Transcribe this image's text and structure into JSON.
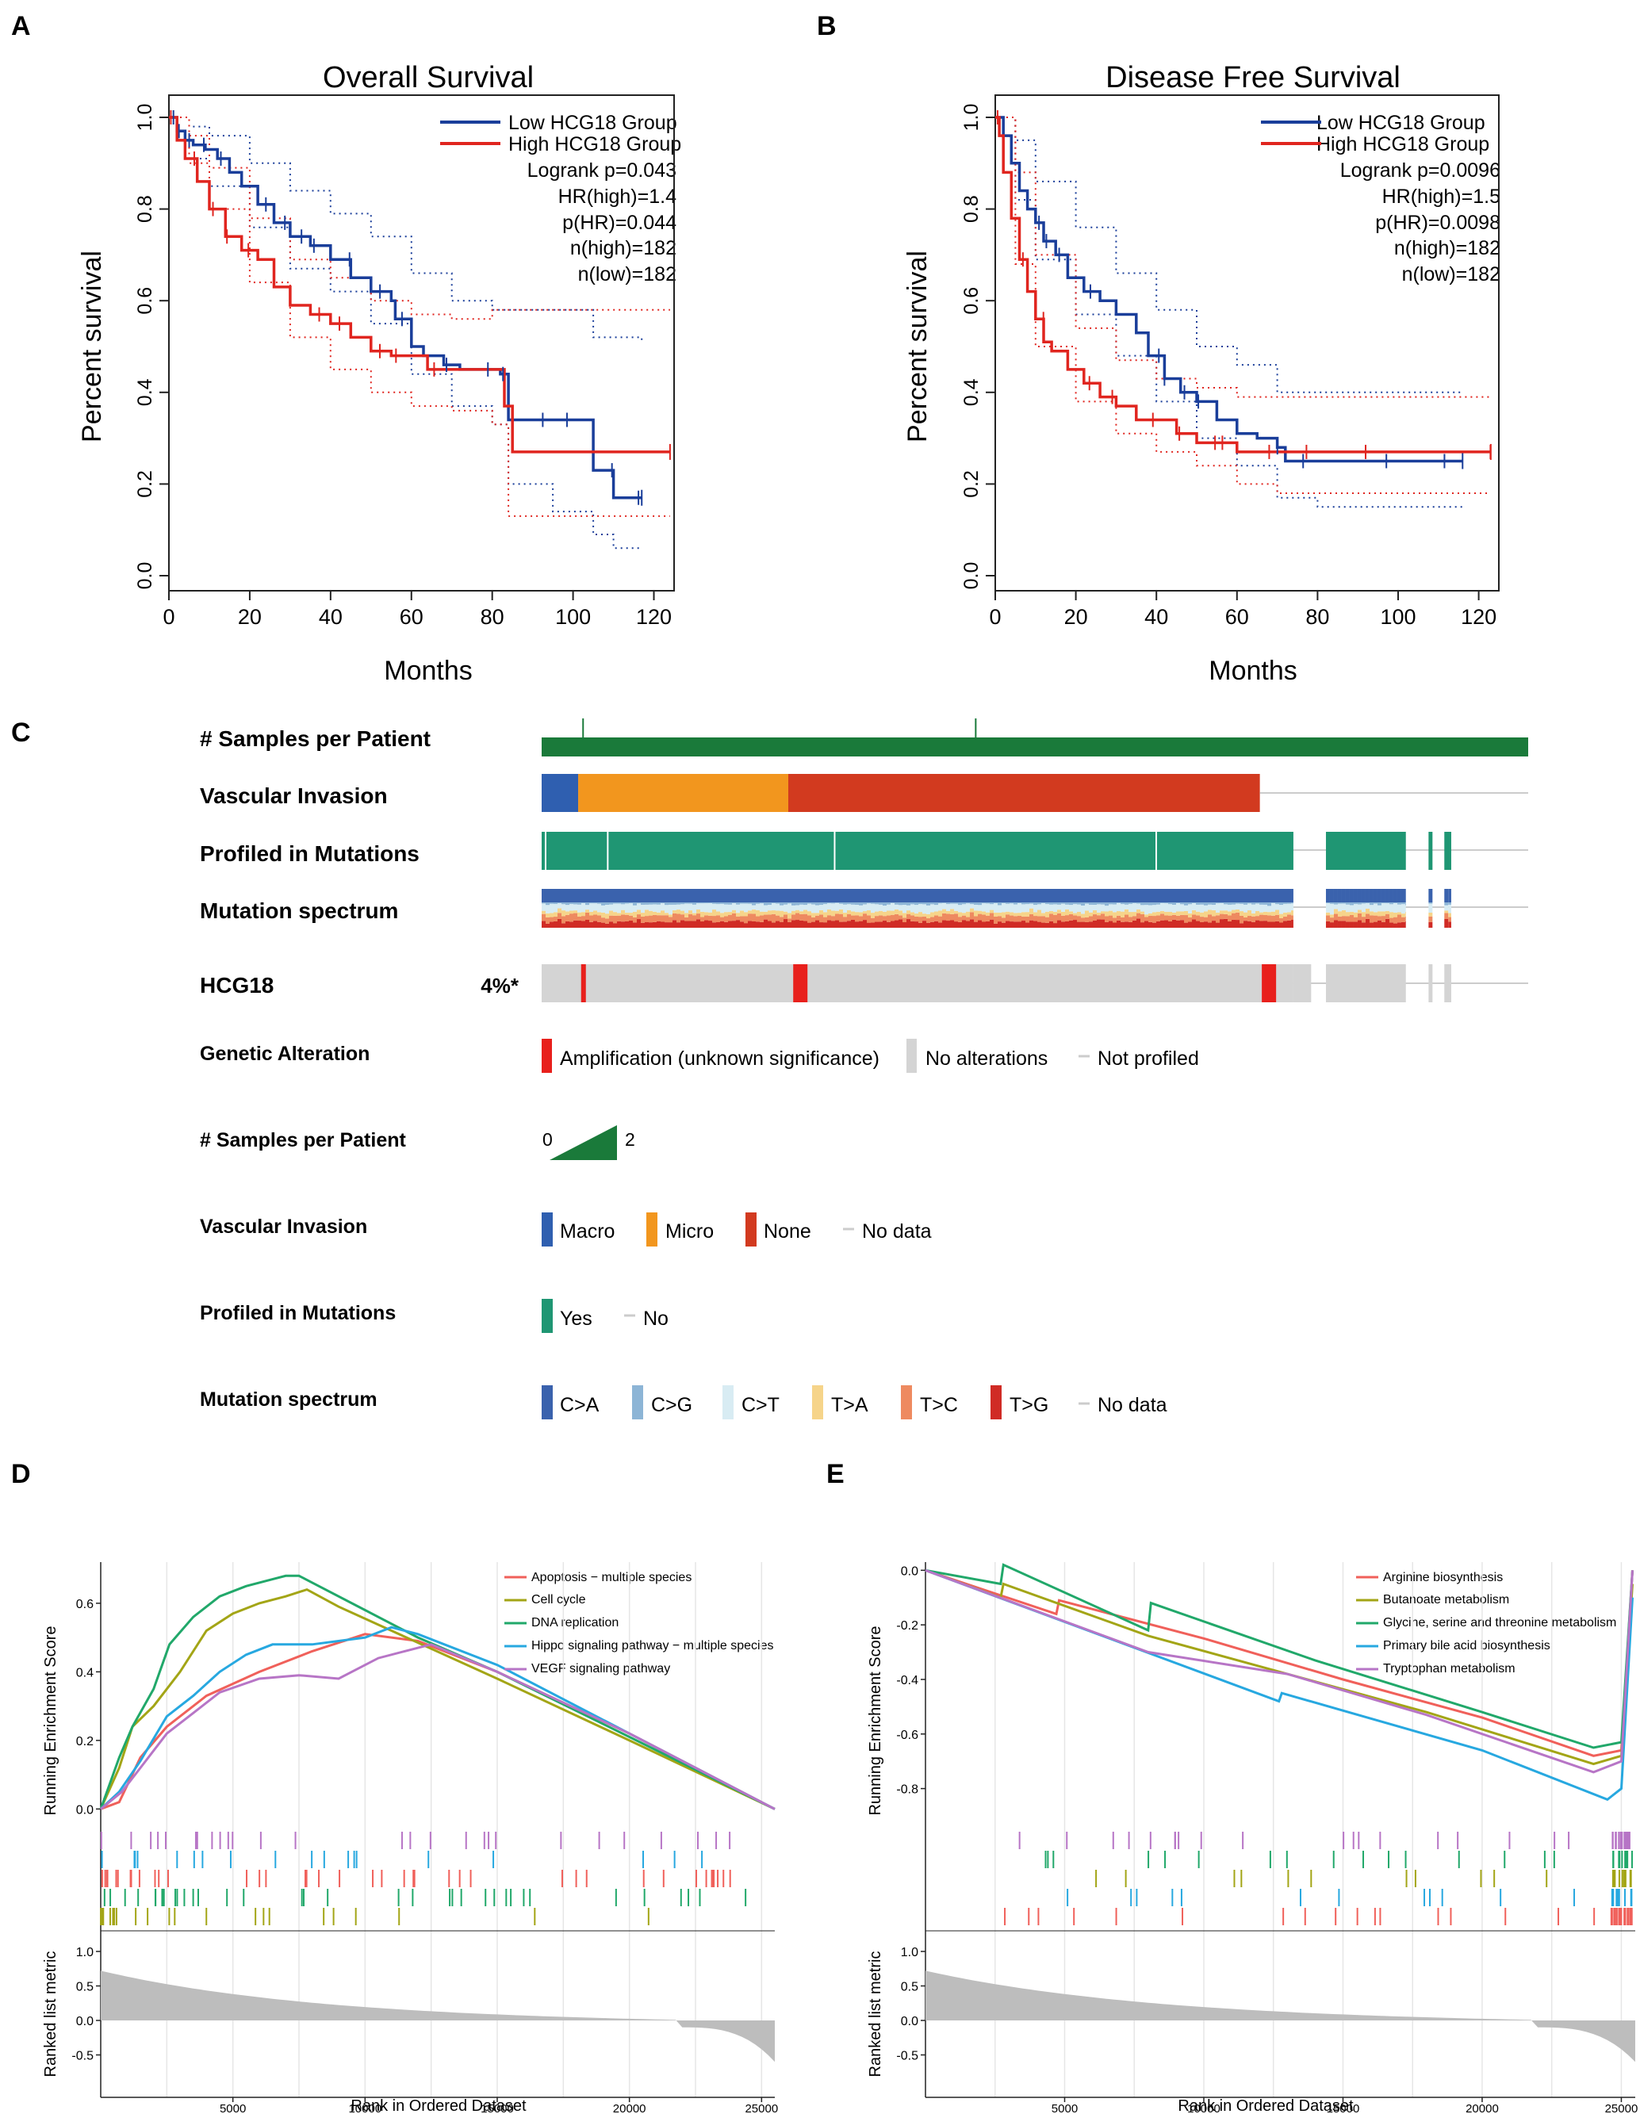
{
  "panel_labels": {
    "a": "A",
    "b": "B",
    "c": "C",
    "d": "D",
    "e": "E"
  },
  "colors": {
    "low": "#1a3e9a",
    "high": "#e0251f",
    "green_dark": "#1a7a3a",
    "teal": "#1f9673",
    "grey": "#d4d4d4",
    "amp": "#e8201c",
    "macro": "#2f5fb0",
    "micro": "#f2961e",
    "none": "#d23a1f",
    "ca": "#3a62ad",
    "cg": "#8db5d6",
    "ct": "#d8ecf3",
    "ta": "#f6d48a",
    "tc": "#ee8a60",
    "tg": "#d02b25",
    "gsea": [
      "#f0605a",
      "#a3a516",
      "#21a86a",
      "#27a8e0",
      "#b775c6"
    ]
  },
  "chart_data": [
    {
      "type": "line",
      "title": "Overall Survival",
      "xlabel": "Months",
      "ylabel": "Percent survival",
      "xlim": [
        0,
        125
      ],
      "ylim": [
        0,
        1.0
      ],
      "xticks": [
        "0",
        "20",
        "40",
        "60",
        "80",
        "100",
        "120"
      ],
      "yticks": [
        "0.0",
        "0.2",
        "0.4",
        "0.6",
        "0.8",
        "1.0"
      ],
      "legend": [
        "Low HCG18 Group",
        "High HCG18 Group"
      ],
      "stats": [
        "Logrank p=0.043",
        "HR(high)=1.4",
        "p(HR)=0.044",
        "n(high)=182",
        "n(low)=182"
      ],
      "series": [
        {
          "name": "Low HCG18 Group",
          "x": [
            0,
            2,
            4,
            6,
            9,
            12,
            15,
            18,
            22,
            26,
            30,
            35,
            40,
            45,
            50,
            55,
            56,
            60,
            63,
            68,
            72,
            78,
            82,
            84,
            95,
            105,
            110,
            117
          ],
          "y": [
            1.0,
            0.97,
            0.95,
            0.94,
            0.93,
            0.91,
            0.88,
            0.85,
            0.81,
            0.77,
            0.74,
            0.72,
            0.69,
            0.65,
            0.62,
            0.6,
            0.56,
            0.5,
            0.48,
            0.46,
            0.45,
            0.45,
            0.44,
            0.34,
            0.34,
            0.23,
            0.17,
            0.17
          ]
        },
        {
          "name": "High HCG18 Group",
          "x": [
            0,
            2,
            4,
            7,
            10,
            14,
            18,
            22,
            26,
            30,
            35,
            40,
            45,
            50,
            55,
            60,
            64,
            70,
            76,
            82,
            83,
            85,
            95,
            105,
            115,
            124
          ],
          "y": [
            1.0,
            0.95,
            0.91,
            0.86,
            0.8,
            0.74,
            0.71,
            0.69,
            0.63,
            0.59,
            0.57,
            0.55,
            0.52,
            0.49,
            0.48,
            0.48,
            0.45,
            0.45,
            0.45,
            0.45,
            0.37,
            0.27,
            0.27,
            0.27,
            0.27,
            0.27
          ]
        },
        {
          "name": "Low CI upper",
          "x": [
            0,
            5,
            10,
            20,
            30,
            40,
            50,
            60,
            70,
            80,
            84,
            95,
            105,
            117
          ],
          "y": [
            1.0,
            0.98,
            0.96,
            0.9,
            0.84,
            0.79,
            0.74,
            0.66,
            0.6,
            0.58,
            0.58,
            0.58,
            0.52,
            0.51
          ]
        },
        {
          "name": "Low CI lower",
          "x": [
            0,
            5,
            10,
            20,
            30,
            40,
            50,
            60,
            70,
            80,
            84,
            95,
            105,
            110,
            117
          ],
          "y": [
            1.0,
            0.91,
            0.85,
            0.76,
            0.67,
            0.62,
            0.55,
            0.44,
            0.37,
            0.33,
            0.2,
            0.14,
            0.09,
            0.06,
            0.06
          ]
        },
        {
          "name": "High CI upper",
          "x": [
            0,
            5,
            10,
            20,
            30,
            40,
            50,
            60,
            70,
            80,
            84,
            95,
            110,
            124
          ],
          "y": [
            1.0,
            0.96,
            0.89,
            0.78,
            0.69,
            0.65,
            0.6,
            0.57,
            0.56,
            0.58,
            0.58,
            0.58,
            0.58,
            0.58
          ]
        },
        {
          "name": "High CI lower",
          "x": [
            0,
            5,
            10,
            20,
            30,
            40,
            50,
            60,
            70,
            80,
            84,
            95,
            110,
            124
          ],
          "y": [
            1.0,
            0.9,
            0.8,
            0.64,
            0.52,
            0.45,
            0.4,
            0.37,
            0.36,
            0.33,
            0.13,
            0.13,
            0.13,
            0.13
          ]
        }
      ]
    },
    {
      "type": "line",
      "title": "Disease Free Survival",
      "xlabel": "Months",
      "ylabel": "Percent survival",
      "xlim": [
        0,
        125
      ],
      "ylim": [
        0,
        1.0
      ],
      "xticks": [
        "0",
        "20",
        "40",
        "60",
        "80",
        "100",
        "120"
      ],
      "yticks": [
        "0.0",
        "0.2",
        "0.4",
        "0.6",
        "0.8",
        "1.0"
      ],
      "legend": [
        "Low HCG18 Group",
        "High HCG18 Group"
      ],
      "stats": [
        "Logrank p=0.0096",
        "HR(high)=1.5",
        "p(HR)=0.0098",
        "n(high)=182",
        "n(low)=182"
      ],
      "series": [
        {
          "name": "Low HCG18 Group",
          "x": [
            0,
            2,
            4,
            6,
            8,
            10,
            12,
            15,
            18,
            22,
            26,
            30,
            35,
            38,
            42,
            46,
            50,
            55,
            60,
            65,
            70,
            72,
            80,
            90,
            100,
            110,
            116
          ],
          "y": [
            1.0,
            0.96,
            0.9,
            0.84,
            0.8,
            0.77,
            0.73,
            0.7,
            0.65,
            0.62,
            0.6,
            0.57,
            0.53,
            0.48,
            0.43,
            0.4,
            0.38,
            0.34,
            0.31,
            0.3,
            0.28,
            0.25,
            0.25,
            0.25,
            0.25,
            0.25,
            0.25
          ]
        },
        {
          "name": "High HCG18 Group",
          "x": [
            0,
            1,
            2,
            4,
            6,
            8,
            10,
            12,
            14,
            18,
            22,
            26,
            30,
            35,
            40,
            45,
            50,
            55,
            60,
            65,
            70,
            80,
            90,
            100,
            110,
            123
          ],
          "y": [
            1.0,
            0.96,
            0.88,
            0.78,
            0.69,
            0.62,
            0.56,
            0.51,
            0.49,
            0.45,
            0.42,
            0.39,
            0.37,
            0.34,
            0.34,
            0.31,
            0.29,
            0.29,
            0.27,
            0.27,
            0.27,
            0.27,
            0.27,
            0.27,
            0.27,
            0.27
          ]
        },
        {
          "name": "Low CI upper",
          "x": [
            0,
            5,
            10,
            20,
            30,
            40,
            50,
            60,
            70,
            80,
            90,
            100,
            116
          ],
          "y": [
            1.0,
            0.95,
            0.86,
            0.76,
            0.66,
            0.58,
            0.5,
            0.46,
            0.4,
            0.4,
            0.4,
            0.4,
            0.4
          ]
        },
        {
          "name": "Low CI lower",
          "x": [
            0,
            5,
            10,
            20,
            30,
            40,
            50,
            60,
            70,
            80,
            90,
            100,
            116
          ],
          "y": [
            1.0,
            0.82,
            0.69,
            0.57,
            0.48,
            0.38,
            0.3,
            0.24,
            0.17,
            0.15,
            0.15,
            0.15,
            0.15
          ]
        },
        {
          "name": "High CI upper",
          "x": [
            0,
            5,
            10,
            20,
            30,
            40,
            50,
            60,
            70,
            80,
            100,
            123
          ],
          "y": [
            1.0,
            0.88,
            0.7,
            0.54,
            0.47,
            0.43,
            0.41,
            0.39,
            0.39,
            0.39,
            0.39,
            0.39
          ]
        },
        {
          "name": "High CI lower",
          "x": [
            0,
            5,
            10,
            20,
            30,
            40,
            50,
            60,
            70,
            80,
            100,
            123
          ],
          "y": [
            1.0,
            0.68,
            0.5,
            0.38,
            0.31,
            0.27,
            0.24,
            0.2,
            0.18,
            0.18,
            0.18,
            0.18
          ]
        }
      ]
    },
    {
      "type": "line",
      "title": "",
      "xlabel": "Rank in Ordered Dataset",
      "ylabel": "Running Enrichment Score",
      "ylabel2": "Ranked list metric",
      "xlim": [
        0,
        25500
      ],
      "ylim": [
        -0.02,
        0.72
      ],
      "xticks": [
        "5000",
        "10000",
        "15000",
        "20000",
        "25000"
      ],
      "yticks": [
        "0.0",
        "0.2",
        "0.4",
        "0.6"
      ],
      "yticks2": [
        "1.0",
        "0.5",
        "0.0",
        "-0.5"
      ],
      "legend": [
        "Apoptosis − multiple species",
        "Cell cycle",
        "DNA replication",
        "Hippo signaling pathway − multiple species",
        "VEGF signaling pathway"
      ],
      "series": [
        {
          "name": "Apoptosis − multiple species",
          "x": [
            0,
            700,
            1500,
            2500,
            4000,
            6000,
            8000,
            10000,
            12000,
            15000,
            20000,
            25500
          ],
          "y": [
            0.0,
            0.02,
            0.15,
            0.24,
            0.33,
            0.4,
            0.46,
            0.51,
            0.49,
            0.4,
            0.22,
            0.0
          ]
        },
        {
          "name": "Cell cycle",
          "x": [
            0,
            700,
            1200,
            2000,
            3000,
            4000,
            5000,
            6000,
            7000,
            7800,
            9000,
            11000,
            15000,
            20000,
            25500
          ],
          "y": [
            0.0,
            0.12,
            0.24,
            0.3,
            0.4,
            0.52,
            0.57,
            0.6,
            0.62,
            0.64,
            0.59,
            0.52,
            0.38,
            0.2,
            0.0
          ]
        },
        {
          "name": "DNA replication",
          "x": [
            0,
            700,
            1200,
            2000,
            2600,
            3500,
            4500,
            5500,
            6500,
            7000,
            7500,
            8000,
            10000,
            12000,
            15000,
            20000,
            25500
          ],
          "y": [
            0.0,
            0.15,
            0.24,
            0.35,
            0.48,
            0.56,
            0.62,
            0.65,
            0.67,
            0.68,
            0.68,
            0.66,
            0.58,
            0.5,
            0.4,
            0.21,
            0.0
          ]
        },
        {
          "name": "Hippo signaling pathway − multiple species",
          "x": [
            0,
            700,
            1500,
            2500,
            3500,
            4500,
            5500,
            6500,
            8000,
            10000,
            11000,
            12000,
            15000,
            20000,
            25500
          ],
          "y": [
            0.0,
            0.05,
            0.14,
            0.27,
            0.33,
            0.4,
            0.45,
            0.48,
            0.48,
            0.5,
            0.53,
            0.51,
            0.42,
            0.22,
            0.0
          ]
        },
        {
          "name": "VEGF signaling pathway",
          "x": [
            0,
            800,
            1500,
            2500,
            3500,
            4500,
            6000,
            7500,
            9000,
            10500,
            11500,
            12500,
            15000,
            20000,
            25500
          ],
          "y": [
            0.0,
            0.05,
            0.12,
            0.22,
            0.28,
            0.34,
            0.38,
            0.39,
            0.38,
            0.44,
            0.46,
            0.48,
            0.4,
            0.22,
            0.0
          ]
        }
      ]
    },
    {
      "type": "line",
      "title": "",
      "xlabel": "Rank in Ordered Dataset",
      "ylabel": "Running Enrichment Score",
      "ylabel2": "Ranked list metric",
      "xlim": [
        0,
        25500
      ],
      "ylim": [
        -0.9,
        0.03
      ],
      "xticks": [
        "5000",
        "10000",
        "15000",
        "20000",
        "25000"
      ],
      "yticks": [
        "0.0",
        "-0.2",
        "-0.4",
        "-0.6",
        "-0.8"
      ],
      "yticks2": [
        "1.0",
        "0.5",
        "0.0",
        "-0.5"
      ],
      "legend": [
        "Arginine biosynthesis",
        "Butanoate metabolism",
        "Glycine, serine and threonine metabolism",
        "Primary bile acid biosynthesis",
        "Tryptophan metabolism"
      ],
      "series": [
        {
          "name": "Arginine biosynthesis",
          "x": [
            0,
            4700,
            4800,
            10000,
            15000,
            20000,
            24000,
            25000,
            25400
          ],
          "y": [
            0.0,
            -0.16,
            -0.11,
            -0.25,
            -0.4,
            -0.54,
            -0.68,
            -0.66,
            0.0
          ]
        },
        {
          "name": "Butanoate metabolism",
          "x": [
            0,
            2700,
            2800,
            8000,
            13000,
            18000,
            24000,
            25000,
            25400
          ],
          "y": [
            0.0,
            -0.1,
            -0.05,
            -0.24,
            -0.38,
            -0.52,
            -0.71,
            -0.68,
            -0.05
          ]
        },
        {
          "name": "Glycine, serine and threonine metabolism",
          "x": [
            0,
            2700,
            2800,
            8000,
            8100,
            14000,
            20000,
            24000,
            25000,
            25400
          ],
          "y": [
            0.0,
            -0.05,
            0.02,
            -0.22,
            -0.12,
            -0.33,
            -0.52,
            -0.65,
            -0.63,
            0.0
          ]
        },
        {
          "name": "Primary bile acid biosynthesis",
          "x": [
            0,
            12700,
            12800,
            20000,
            24500,
            25000,
            25400
          ],
          "y": [
            0.0,
            -0.48,
            -0.45,
            -0.66,
            -0.84,
            -0.8,
            -0.1
          ]
        },
        {
          "name": "Tryptophan metabolism",
          "x": [
            0,
            8000,
            13000,
            18000,
            24000,
            25000,
            25400
          ],
          "y": [
            0.0,
            -0.3,
            -0.38,
            -0.53,
            -0.74,
            -0.7,
            0.0
          ]
        }
      ]
    }
  ],
  "oncoprint": {
    "tracks": [
      "# Samples per Patient",
      "Vascular Invasion",
      "Profiled in Mutations",
      "Mutation spectrum",
      "HCG18"
    ],
    "hcg18_pct": "4%*",
    "vascular": [
      {
        "cat": "Macro",
        "from": 0,
        "to": 0.037
      },
      {
        "cat": "Micro",
        "from": 0.037,
        "to": 0.25
      },
      {
        "cat": "None",
        "from": 0.25,
        "to": 0.728
      }
    ],
    "profiled_segments": [
      [
        0,
        0.762
      ],
      [
        0.795,
        0.876
      ],
      [
        0.899,
        0.903
      ],
      [
        0.915,
        0.922
      ]
    ],
    "amplifications": [
      0.04,
      0.255,
      0.73
    ],
    "legend": {
      "genetic_alteration": {
        "title": "Genetic Alteration",
        "items": [
          "Amplification (unknown significance)",
          "No alterations",
          "Not profiled"
        ]
      },
      "samples": {
        "title": "# Samples per Patient",
        "min": "0",
        "max": "2"
      },
      "vascular": {
        "title": "Vascular Invasion",
        "items": [
          "Macro",
          "Micro",
          "None",
          "No data"
        ]
      },
      "profiled": {
        "title": "Profiled in Mutations",
        "items": [
          "Yes",
          "No"
        ]
      },
      "spectrum": {
        "title": "Mutation spectrum",
        "items": [
          "C>A",
          "C>G",
          "C>T",
          "T>A",
          "T>C",
          "T>G",
          "No data"
        ]
      }
    }
  }
}
